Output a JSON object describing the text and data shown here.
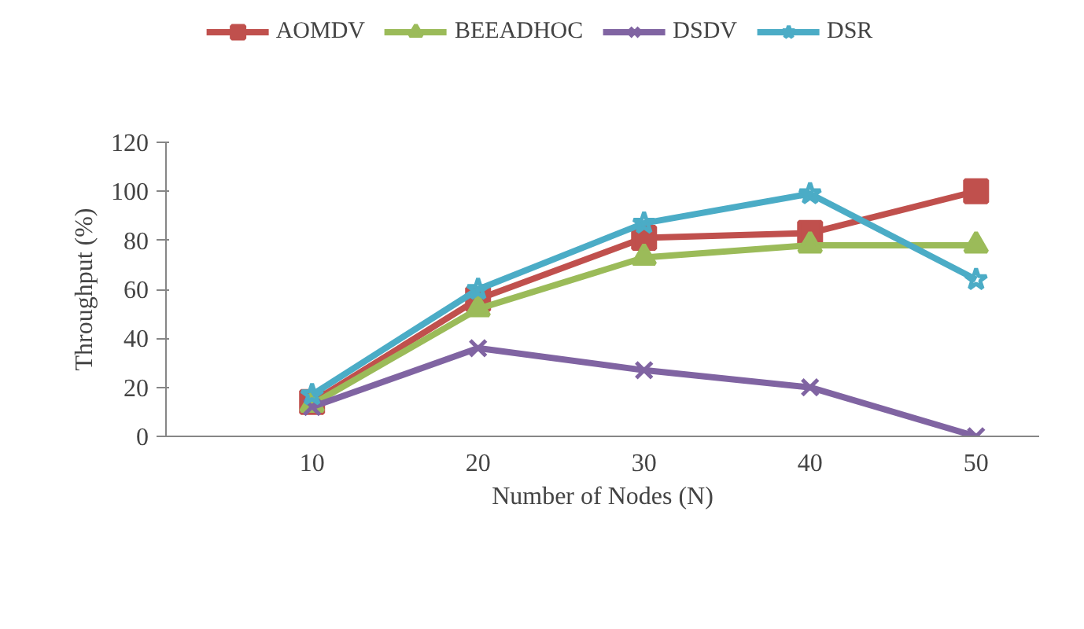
{
  "chart_data": {
    "type": "line",
    "xlabel": "Number of Nodes (N)",
    "ylabel": "Throughput (%)",
    "categories": [
      "10",
      "20",
      "30",
      "40",
      "50"
    ],
    "ylim": [
      0,
      120
    ],
    "yticks": [
      0,
      20,
      40,
      60,
      80,
      100,
      120
    ],
    "grid": false,
    "legend": "top",
    "line_style": "solid",
    "series": [
      {
        "name": "AOMDV",
        "color": "#c0504d",
        "marker": "square",
        "values": [
          14,
          56,
          81,
          83,
          100
        ]
      },
      {
        "name": "BEEADHOC",
        "color": "#9bbb59",
        "marker": "triangle",
        "values": [
          13,
          52,
          73,
          78,
          78
        ]
      },
      {
        "name": "DSDV",
        "color": "#8064a2",
        "marker": "cross",
        "values": [
          12,
          36,
          27,
          20,
          0
        ]
      },
      {
        "name": "DSR",
        "color": "#4bacc6",
        "marker": "star",
        "values": [
          17,
          60,
          87,
          99,
          64
        ]
      }
    ]
  }
}
